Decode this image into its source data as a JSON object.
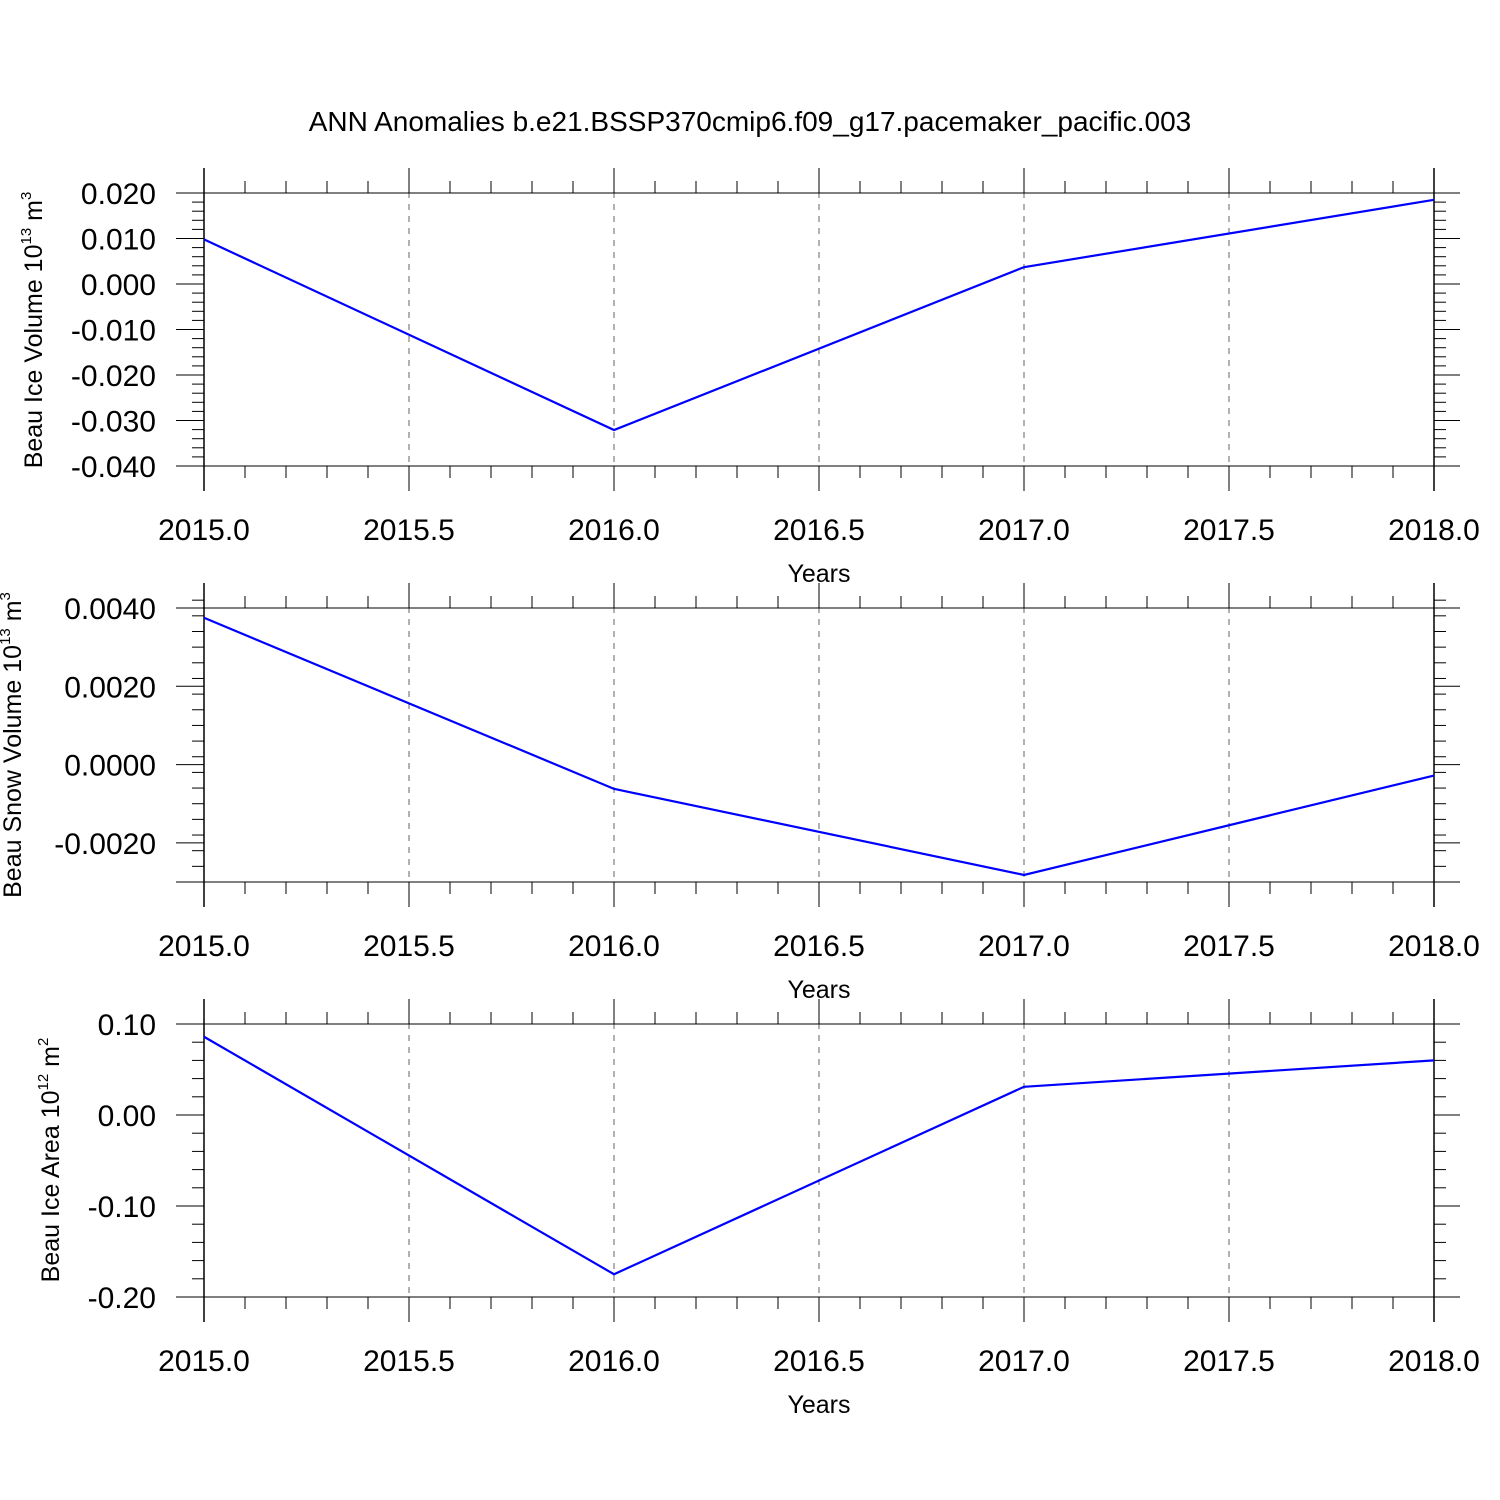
{
  "title": "ANN Anomalies b.e21.BSSP370cmip6.f09_g17.pacemaker_pacific.003",
  "chart_data": [
    {
      "type": "line",
      "ylabel": "Beau Ice Volume 10",
      "ylabel_sup": "13",
      "ylabel_unit": " m",
      "ylabel_unit_sup": "3",
      "xlabel": "Years",
      "x": [
        2015.0,
        2016.0,
        2017.0,
        2018.0
      ],
      "series": [
        {
          "values": [
            0.0098,
            -0.0321,
            0.0037,
            0.0185
          ],
          "color": "#0000ff"
        }
      ],
      "xlim": [
        2015.0,
        2018.0
      ],
      "ylim": [
        -0.04,
        0.02
      ],
      "xticks": [
        "2015.0",
        "2015.5",
        "2016.0",
        "2016.5",
        "2017.0",
        "2017.5",
        "2018.0"
      ],
      "yticks": [
        "0.020",
        "0.010",
        "0.000",
        "-0.010",
        "-0.020",
        "-0.030",
        "-0.040"
      ],
      "grid": "vertical dashed at x ticks"
    },
    {
      "type": "line",
      "ylabel": "Beau Snow Volume 10",
      "ylabel_sup": "13",
      "ylabel_unit": " m",
      "ylabel_unit_sup": "3",
      "xlabel": "Years",
      "x": [
        2015.0,
        2016.0,
        2017.0,
        2018.0
      ],
      "series": [
        {
          "values": [
            0.00375,
            -0.00062,
            -0.00282,
            -0.00028
          ],
          "color": "#0000ff"
        }
      ],
      "xlim": [
        2015.0,
        2018.0
      ],
      "ylim": [
        -0.003,
        0.004
      ],
      "xticks": [
        "2015.0",
        "2015.5",
        "2016.0",
        "2016.5",
        "2017.0",
        "2017.5",
        "2018.0"
      ],
      "yticks": [
        "0.0040",
        "0.0020",
        "0.0000",
        "-0.0020"
      ],
      "grid": "vertical dashed at x ticks"
    },
    {
      "type": "line",
      "ylabel": "Beau Ice Area 10",
      "ylabel_sup": "12",
      "ylabel_unit": " m",
      "ylabel_unit_sup": "2",
      "xlabel": "Years",
      "x": [
        2015.0,
        2016.0,
        2017.0,
        2018.0
      ],
      "series": [
        {
          "values": [
            0.086,
            -0.175,
            0.031,
            0.06
          ],
          "color": "#0000ff"
        }
      ],
      "xlim": [
        2015.0,
        2018.0
      ],
      "ylim": [
        -0.2,
        0.1
      ],
      "xticks": [
        "2015.0",
        "2015.5",
        "2016.0",
        "2016.5",
        "2017.0",
        "2017.5",
        "2018.0"
      ],
      "yticks": [
        "0.10",
        "0.00",
        "-0.10",
        "-0.20"
      ],
      "grid": "vertical dashed at x ticks"
    }
  ]
}
